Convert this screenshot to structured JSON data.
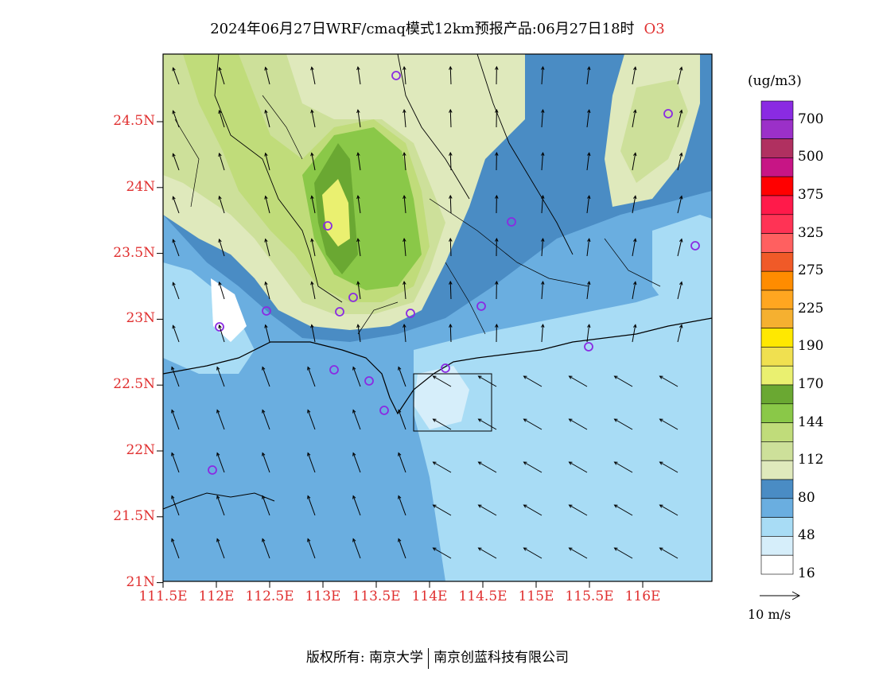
{
  "title": "2024年06月27日WRF/cmaq模式12km预报产品:06月27日18时",
  "species": "O3",
  "lat_labels": [
    "24.5N",
    "24N",
    "23.5N",
    "23N",
    "22.5N",
    "22N",
    "21.5N",
    "21N"
  ],
  "lon_labels": [
    "111.5E",
    "112E",
    "112.5E",
    "113E",
    "113.5E",
    "114E",
    "114.5E",
    "115E",
    "115.5E",
    "116E"
  ],
  "colorbar": {
    "unit": "(ug/m3)",
    "levels": [
      "700",
      "500",
      "375",
      "325",
      "275",
      "225",
      "190",
      "170",
      "144",
      "112",
      "80",
      "48",
      "16"
    ],
    "colors": [
      "#8a2be2",
      "#9b30c8",
      "#b03060",
      "#c71585",
      "#ff0000",
      "#ff1a4a",
      "#ff3355",
      "#ff6060",
      "#f05a28",
      "#ff8c00",
      "#ffa620",
      "#f5b030",
      "#ffe800",
      "#f0e050",
      "#eaf070",
      "#6aa832",
      "#8ac848",
      "#c0dc7a",
      "#cde09a",
      "#dfe9bc",
      "#4a8cc4",
      "#6aaee0",
      "#a8dcf5",
      "#d6eefa",
      "#ffffff"
    ]
  },
  "wind_reference": "10 m/s",
  "footer": {
    "left": "版权所有: 南京大学",
    "right": "南京创蓝科技有限公司"
  }
}
